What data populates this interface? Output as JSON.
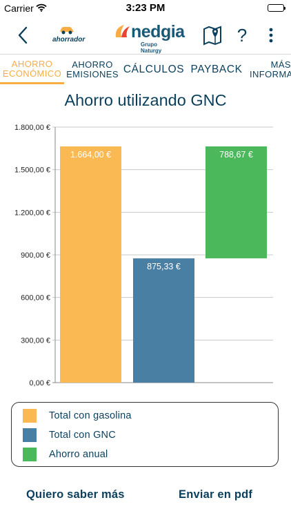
{
  "status_bar": {
    "carrier": "Carrier",
    "time": "3:23 PM"
  },
  "header": {
    "app_logo_text": "ahorrador",
    "brand_name": "nedgia",
    "brand_sub": "Grupo Naturgy",
    "help_label": "?"
  },
  "tabs": [
    {
      "lines": [
        "AHORRO",
        "ECONÓMICO"
      ],
      "active": true
    },
    {
      "lines": [
        "AHORRO",
        "EMISIONES"
      ],
      "active": false
    },
    {
      "lines": [
        "CÁLCULOS"
      ],
      "active": false
    },
    {
      "lines": [
        "PAYBACK"
      ],
      "active": false
    },
    {
      "lines": [
        "MÁS",
        "INFORMAC"
      ],
      "active": false
    }
  ],
  "colors": {
    "gasolina": "#fbb954",
    "gnc": "#4a7fa4",
    "ahorro": "#4cb85c",
    "accent": "#f7ad44",
    "text": "#0a3f5c"
  },
  "chart_data": {
    "type": "bar",
    "title": "Ahorro utilizando GNC",
    "ylim": [
      0,
      1800
    ],
    "yticks": [
      0,
      300,
      600,
      900,
      1200,
      1500,
      1800
    ],
    "ytick_labels": [
      "0,00 €",
      "300,00 €",
      "600,00 €",
      "900,00 €",
      "1.200,00 €",
      "1.500,00 €",
      "1.800,00 €"
    ],
    "grid": true,
    "legend_position": "bottom",
    "series": [
      {
        "name": "Total con gasolina",
        "value": 1664.0,
        "base": 0,
        "label": "1.664,00 €"
      },
      {
        "name": "Total con GNC",
        "value": 875.33,
        "base": 0,
        "label": "875,33 €"
      },
      {
        "name": "Ahorro anual",
        "value": 788.67,
        "base": 875.33,
        "label": "788,67 €"
      }
    ]
  },
  "legend": [
    {
      "label": "Total con gasolina"
    },
    {
      "label": "Total con GNC"
    },
    {
      "label": "Ahorro anual"
    }
  ],
  "footer": {
    "more_info": "Quiero saber más",
    "send_pdf": "Enviar en pdf"
  }
}
